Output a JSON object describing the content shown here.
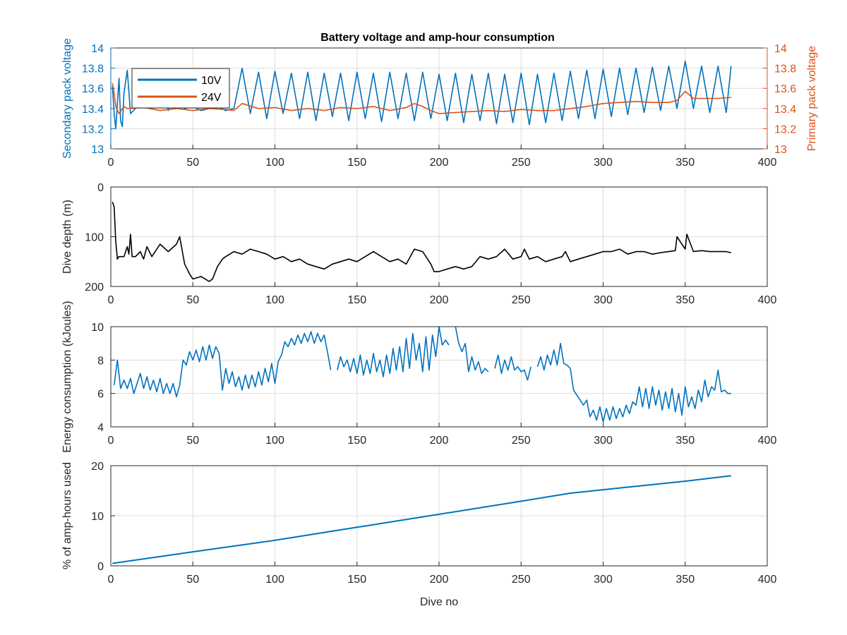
{
  "figure": {
    "title": "Battery voltage and amp-hour consumption",
    "colors": {
      "blue": "#0072bd",
      "orange": "#d95319",
      "black": "#000000",
      "grid": "#dddddd",
      "axis": "#262626"
    }
  },
  "chart_data": [
    {
      "type": "line",
      "title": "Battery voltage and amp-hour consumption",
      "xlabel": "",
      "ylabel": "Secondary pack voltage",
      "ylabel_right": "Primary pack voltage",
      "xlim": [
        0,
        400
      ],
      "ylim": [
        13,
        14
      ],
      "ylim_right": [
        13,
        14
      ],
      "xticks": [
        0,
        50,
        100,
        150,
        200,
        250,
        300,
        350,
        400
      ],
      "yticks": [
        13,
        13.2,
        13.4,
        13.6,
        13.8,
        14
      ],
      "grid": true,
      "legend": "top-left",
      "series": [
        {
          "name": "10V",
          "axis": "left",
          "color": "#0072bd",
          "note": "dense switching between upper and lower levels",
          "x": [
            1,
            2,
            3,
            4,
            5,
            6,
            7,
            8,
            10,
            12,
            15,
            20,
            25,
            30,
            35,
            40,
            45,
            50,
            55,
            60,
            65,
            70,
            75,
            80,
            85,
            90,
            95,
            100,
            105,
            110,
            115,
            120,
            125,
            130,
            135,
            140,
            145,
            150,
            155,
            160,
            165,
            170,
            175,
            180,
            185,
            190,
            195,
            200,
            205,
            210,
            215,
            220,
            225,
            230,
            235,
            240,
            245,
            250,
            255,
            260,
            265,
            270,
            275,
            280,
            285,
            290,
            295,
            300,
            305,
            310,
            315,
            320,
            325,
            330,
            335,
            340,
            345,
            350,
            355,
            360,
            365,
            370,
            375,
            378
          ],
          "y": [
            13.62,
            13.35,
            13.2,
            13.45,
            13.7,
            13.28,
            13.22,
            13.55,
            13.78,
            13.35,
            13.4,
            13.75,
            13.4,
            13.77,
            13.38,
            13.76,
            13.4,
            13.42,
            13.38,
            13.4,
            13.42,
            13.38,
            13.4,
            13.8,
            13.35,
            13.76,
            13.3,
            13.77,
            13.35,
            13.75,
            13.3,
            13.76,
            13.28,
            13.75,
            13.32,
            13.75,
            13.28,
            13.76,
            13.3,
            13.75,
            13.27,
            13.76,
            13.3,
            13.75,
            13.28,
            13.76,
            13.3,
            13.74,
            13.28,
            13.75,
            13.26,
            13.74,
            13.28,
            13.75,
            13.25,
            13.74,
            13.26,
            13.75,
            13.24,
            13.74,
            13.26,
            13.75,
            13.28,
            13.77,
            13.3,
            13.78,
            13.3,
            13.79,
            13.32,
            13.8,
            13.34,
            13.8,
            13.36,
            13.81,
            13.38,
            13.82,
            13.4,
            13.87,
            13.4,
            13.82,
            13.36,
            13.82,
            13.36,
            13.82
          ]
        },
        {
          "name": "24V",
          "axis": "right",
          "color": "#d95319",
          "x": [
            1,
            2,
            3,
            5,
            8,
            10,
            20,
            30,
            40,
            50,
            60,
            70,
            75,
            80,
            90,
            100,
            110,
            120,
            130,
            140,
            150,
            160,
            170,
            180,
            185,
            190,
            195,
            200,
            210,
            220,
            230,
            240,
            250,
            260,
            270,
            280,
            290,
            300,
            310,
            320,
            330,
            340,
            345,
            350,
            355,
            360,
            370,
            378
          ],
          "y": [
            13.65,
            13.55,
            13.42,
            13.35,
            13.42,
            13.4,
            13.41,
            13.38,
            13.4,
            13.38,
            13.4,
            13.39,
            13.38,
            13.45,
            13.4,
            13.41,
            13.38,
            13.4,
            13.38,
            13.41,
            13.4,
            13.42,
            13.38,
            13.41,
            13.45,
            13.42,
            13.38,
            13.35,
            13.36,
            13.37,
            13.38,
            13.37,
            13.39,
            13.38,
            13.38,
            13.4,
            13.42,
            13.45,
            13.46,
            13.47,
            13.46,
            13.46,
            13.48,
            13.57,
            13.5,
            13.5,
            13.5,
            13.51
          ]
        }
      ]
    },
    {
      "type": "line",
      "title": "",
      "xlabel": "",
      "ylabel": "Dive depth (m)",
      "y_reversed": true,
      "xlim": [
        0,
        400
      ],
      "ylim": [
        0,
        200
      ],
      "xticks": [
        0,
        50,
        100,
        150,
        200,
        250,
        300,
        350,
        400
      ],
      "yticks": [
        0,
        100,
        200
      ],
      "grid": true,
      "series": [
        {
          "color": "#000000",
          "x": [
            1,
            2,
            3,
            4,
            5,
            8,
            10,
            11,
            12,
            13,
            15,
            18,
            20,
            22,
            25,
            30,
            35,
            40,
            42,
            45,
            48,
            50,
            55,
            60,
            62,
            65,
            68,
            70,
            75,
            80,
            85,
            90,
            95,
            100,
            105,
            110,
            115,
            120,
            125,
            130,
            135,
            140,
            145,
            150,
            155,
            160,
            165,
            170,
            175,
            180,
            185,
            190,
            195,
            197,
            200,
            205,
            210,
            215,
            220,
            225,
            230,
            235,
            240,
            245,
            250,
            252,
            255,
            260,
            265,
            270,
            275,
            277,
            280,
            285,
            290,
            295,
            300,
            305,
            310,
            315,
            320,
            325,
            330,
            335,
            340,
            344,
            345,
            350,
            351,
            355,
            360,
            365,
            370,
            375,
            378
          ],
          "y": [
            30,
            40,
            110,
            145,
            140,
            140,
            120,
            135,
            95,
            140,
            140,
            130,
            145,
            120,
            140,
            115,
            130,
            115,
            100,
            155,
            175,
            185,
            180,
            190,
            185,
            160,
            145,
            140,
            130,
            135,
            125,
            130,
            135,
            145,
            140,
            150,
            145,
            155,
            160,
            165,
            155,
            150,
            145,
            150,
            140,
            130,
            140,
            150,
            145,
            155,
            125,
            130,
            155,
            170,
            170,
            165,
            160,
            165,
            160,
            140,
            145,
            140,
            125,
            145,
            140,
            125,
            145,
            140,
            150,
            145,
            140,
            130,
            150,
            145,
            140,
            135,
            130,
            130,
            125,
            135,
            130,
            130,
            135,
            132,
            130,
            128,
            100,
            125,
            95,
            130,
            128,
            130,
            130,
            130,
            132
          ]
        }
      ]
    },
    {
      "type": "line",
      "title": "",
      "xlabel": "",
      "ylabel": "Energy consumption (kJoules)",
      "xlim": [
        0,
        400
      ],
      "ylim": [
        4,
        10
      ],
      "xticks": [
        0,
        50,
        100,
        150,
        200,
        250,
        300,
        350,
        400
      ],
      "yticks": [
        4,
        6,
        8,
        10
      ],
      "grid": true,
      "series": [
        {
          "color": "#0072bd",
          "segments": [
            {
              "x": [
                2,
                4,
                6,
                8,
                10,
                12,
                14,
                16,
                18,
                20,
                22,
                24,
                26,
                28,
                30,
                32,
                34,
                36,
                38,
                40,
                42,
                44,
                46,
                48,
                50,
                52,
                54,
                56,
                58,
                60,
                62,
                64,
                66,
                68,
                70,
                72,
                74,
                76,
                78,
                80,
                82,
                84,
                86,
                88,
                90,
                92,
                94,
                96,
                98,
                100,
                102,
                104,
                106,
                108,
                110,
                112,
                114,
                116,
                118,
                120,
                122,
                124,
                126,
                128,
                130,
                132,
                134
              ],
              "y": [
                6.5,
                8.0,
                6.3,
                6.8,
                6.3,
                6.9,
                6.0,
                6.6,
                7.2,
                6.3,
                7.0,
                6.2,
                6.8,
                6.1,
                6.9,
                6.0,
                6.6,
                6.0,
                6.6,
                5.8,
                6.5,
                8.0,
                7.7,
                8.5,
                8.0,
                8.6,
                7.9,
                8.8,
                8.0,
                8.9,
                8.1,
                8.8,
                8.4,
                6.2,
                7.5,
                6.6,
                7.3,
                6.4,
                7.0,
                6.2,
                7.1,
                6.3,
                7.1,
                6.4,
                7.3,
                6.5,
                7.5,
                6.7,
                7.8,
                6.6,
                7.9,
                8.3,
                9.1,
                8.8,
                9.3,
                8.9,
                9.5,
                9.0,
                9.6,
                9.1,
                9.7,
                9.0,
                9.6,
                9.1,
                9.5,
                8.5,
                7.4
              ]
            },
            {
              "x": [
                138,
                140,
                142,
                144,
                146,
                148,
                150,
                152,
                154,
                156,
                158,
                160,
                162,
                164,
                166,
                168,
                170,
                172,
                174,
                176,
                178,
                180,
                182,
                184,
                186,
                188,
                190,
                192,
                194,
                196,
                198,
                200,
                202,
                204,
                206
              ],
              "y": [
                7.4,
                8.2,
                7.6,
                8.0,
                7.3,
                8.1,
                7.2,
                8.3,
                7.1,
                8.0,
                7.2,
                8.4,
                7.3,
                8.0,
                7.0,
                8.3,
                7.2,
                8.7,
                7.4,
                8.8,
                7.3,
                9.3,
                7.5,
                9.6,
                8.0,
                9.0,
                7.3,
                9.4,
                7.4,
                9.5,
                8.2,
                10.0,
                8.9,
                9.2,
                8.9
              ]
            },
            {
              "x": [
                210,
                212,
                214,
                216,
                218,
                220,
                222,
                224,
                226,
                228,
                230
              ],
              "y": [
                10.0,
                9.0,
                8.5,
                9.0,
                7.3,
                8.2,
                7.4,
                7.9,
                7.2,
                7.5,
                7.3
              ]
            },
            {
              "x": [
                234,
                236,
                238,
                240,
                242,
                244,
                246,
                248,
                250,
                252,
                254,
                256
              ],
              "y": [
                7.5,
                8.3,
                7.2,
                8.0,
                7.4,
                8.2,
                7.4,
                7.6,
                7.3,
                7.4,
                6.8,
                7.6
              ]
            },
            {
              "x": [
                260,
                262,
                264,
                266,
                268,
                270,
                272,
                274,
                276,
                278,
                280,
                282,
                284,
                286,
                288,
                290,
                292,
                294,
                296,
                298,
                300,
                302,
                304,
                306,
                308,
                310,
                312,
                314,
                316,
                318,
                320,
                322,
                324,
                326,
                328,
                330,
                332,
                334,
                336,
                338,
                340,
                342,
                344,
                346,
                348,
                350,
                352,
                354,
                356,
                358,
                360,
                362,
                364,
                366,
                368,
                370,
                372,
                374,
                376,
                378
              ],
              "y": [
                7.6,
                8.2,
                7.4,
                8.3,
                7.7,
                8.6,
                7.7,
                9.0,
                7.8,
                7.7,
                7.5,
                6.2,
                5.9,
                5.6,
                5.3,
                5.6,
                4.6,
                5.0,
                4.4,
                5.2,
                4.3,
                5.1,
                4.4,
                5.2,
                4.5,
                5.1,
                4.6,
                5.3,
                4.8,
                5.5,
                5.3,
                6.4,
                5.2,
                6.3,
                5.1,
                6.4,
                5.3,
                6.2,
                5.0,
                6.1,
                5.1,
                6.3,
                4.9,
                6.0,
                4.7,
                6.4,
                5.2,
                5.8,
                5.1,
                6.2,
                5.5,
                6.8,
                5.8,
                6.4,
                6.2,
                7.4,
                6.1,
                6.2,
                6.0,
                6.0
              ]
            }
          ]
        }
      ]
    },
    {
      "type": "line",
      "title": "",
      "xlabel": "Dive no",
      "ylabel": "% of amp-hours used",
      "xlim": [
        0,
        400
      ],
      "ylim": [
        0,
        20
      ],
      "xticks": [
        0,
        50,
        100,
        150,
        200,
        250,
        300,
        350,
        400
      ],
      "yticks": [
        0,
        10,
        20
      ],
      "grid": true,
      "series": [
        {
          "color": "#0072bd",
          "x": [
            1,
            50,
            100,
            150,
            200,
            250,
            280,
            300,
            350,
            378
          ],
          "y": [
            0.5,
            2.8,
            5.1,
            7.7,
            10.3,
            12.9,
            14.5,
            15.2,
            16.9,
            18.0
          ]
        }
      ]
    }
  ]
}
